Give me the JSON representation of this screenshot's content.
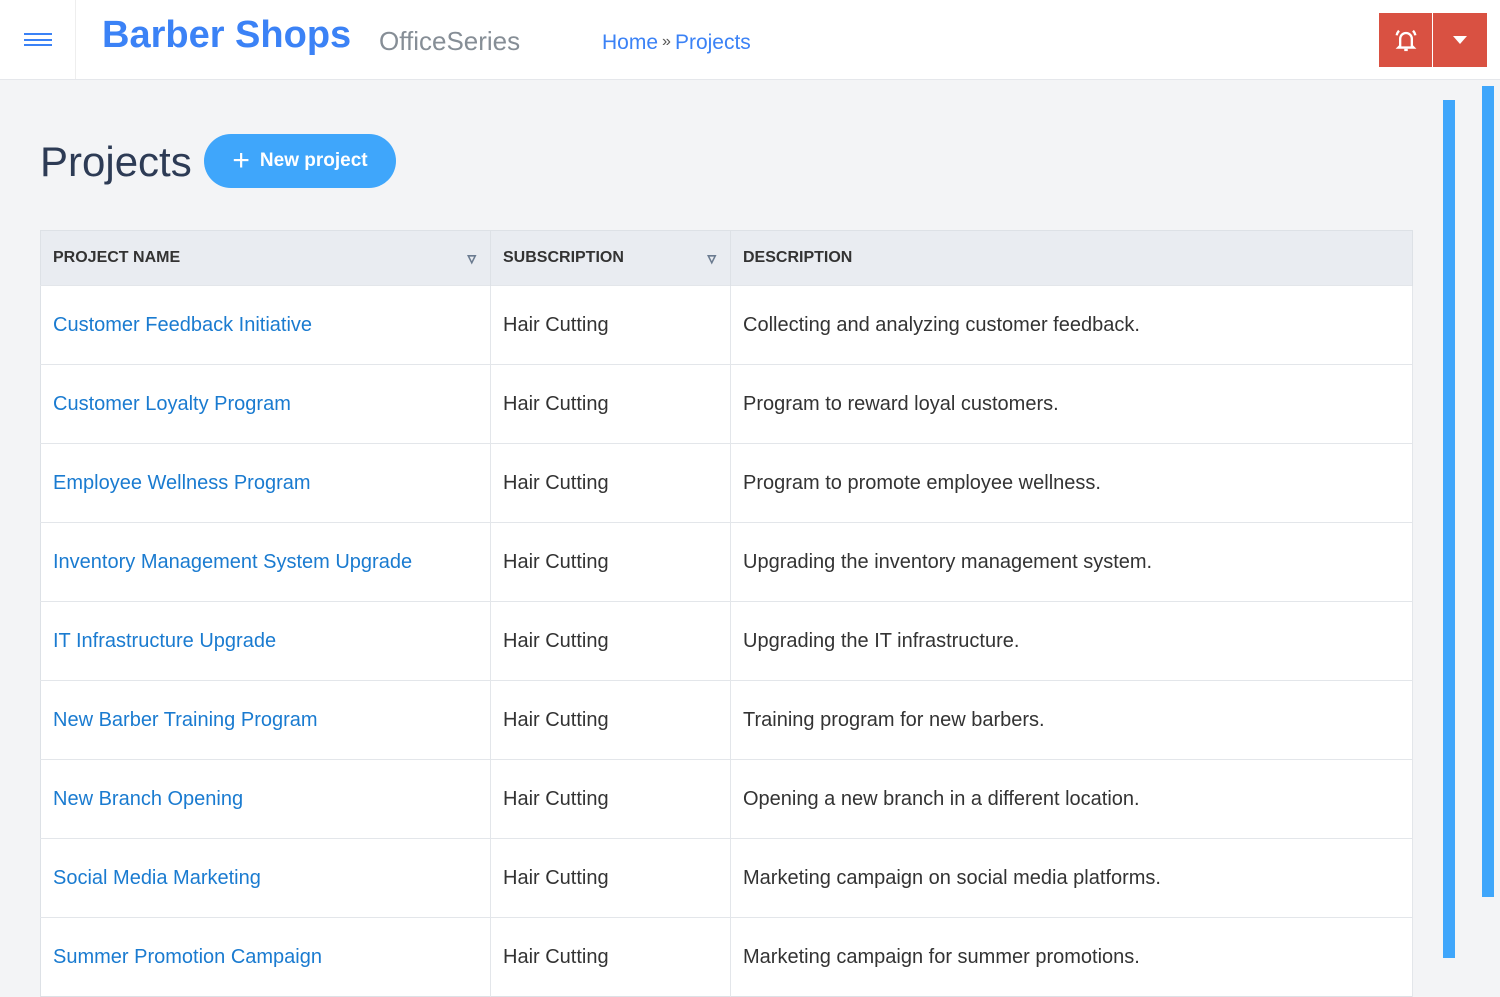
{
  "header": {
    "brand": "Barber Shops",
    "suite": "OfficeSeries",
    "breadcrumb": [
      "Home",
      "Projects"
    ],
    "breadcrumb_sep": "»"
  },
  "page": {
    "title": "Projects",
    "new_button": "New project"
  },
  "table": {
    "columns": [
      "PROJECT NAME",
      "SUBSCRIPTION",
      "DESCRIPTION"
    ],
    "rows": [
      [
        "Customer Feedback Initiative",
        "Hair Cutting",
        "Collecting and analyzing customer feedback."
      ],
      [
        "Customer Loyalty Program",
        "Hair Cutting",
        "Program to reward loyal customers."
      ],
      [
        "Employee Wellness Program",
        "Hair Cutting",
        "Program to promote employee wellness."
      ],
      [
        "Inventory Management System Upgrade",
        "Hair Cutting",
        "Upgrading the inventory management system."
      ],
      [
        "IT Infrastructure Upgrade",
        "Hair Cutting",
        "Upgrading the IT infrastructure."
      ],
      [
        "New Barber Training Program",
        "Hair Cutting",
        "Training program for new barbers."
      ],
      [
        "New Branch Opening",
        "Hair Cutting",
        "Opening a new branch in a different location."
      ],
      [
        "Social Media Marketing",
        "Hair Cutting",
        "Marketing campaign on social media platforms."
      ],
      [
        "Summer Promotion Campaign",
        "Hair Cutting",
        "Marketing campaign for summer promotions."
      ]
    ]
  },
  "colors": {
    "accent": "#3b82f6",
    "button": "#3fa6fb",
    "alert": "#d95142"
  }
}
